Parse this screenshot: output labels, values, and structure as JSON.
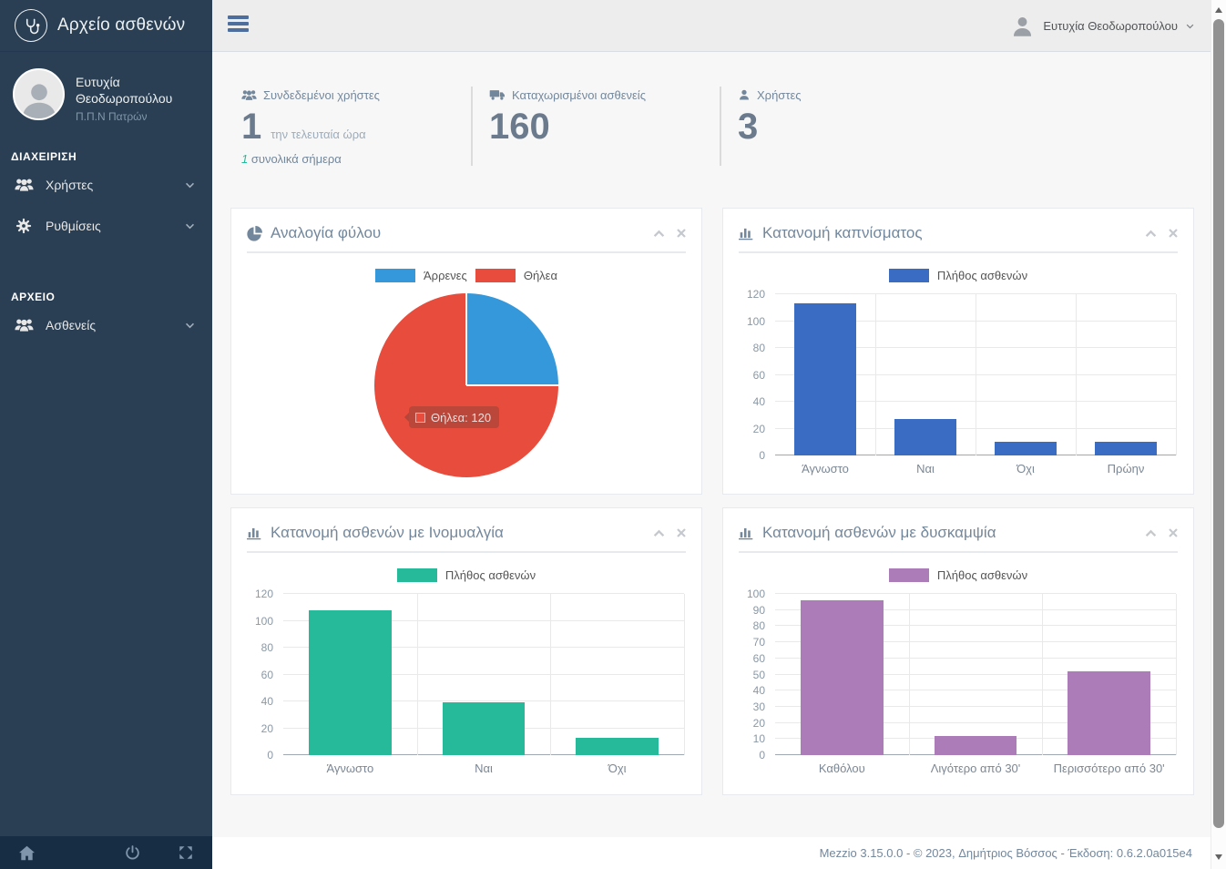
{
  "sidebar": {
    "brand": "Αρχείο ασθενών",
    "brand_icon": "stethoscope-icon",
    "user": {
      "name": "Ευτυχία Θεοδωροπούλου",
      "org": "Π.Π.Ν Πατρών"
    },
    "sections": [
      {
        "label": "ΔΙΑΧΕΙΡΙΣΗ",
        "items": [
          {
            "label": "Χρήστες",
            "icon": "users-icon"
          },
          {
            "label": "Ρυθμίσεις",
            "icon": "gear-icon"
          }
        ]
      },
      {
        "label": "ΑΡΧΕΙΟ",
        "items": [
          {
            "label": "Ασθενείς",
            "icon": "users-icon"
          }
        ]
      }
    ],
    "footer_icons": [
      "home-icon",
      "power-icon",
      "fullscreen-icon"
    ]
  },
  "topbar": {
    "menu_icon": "hamburger-icon",
    "user_icon": "person-icon",
    "user_name": "Ευτυχία Θεοδωροπούλου"
  },
  "stats": {
    "connected": {
      "icon": "users-icon",
      "label": "Συνδεδεμένοι χρήστες",
      "count": "1",
      "suffix": "την τελευταία ώρα",
      "sub_count": "1",
      "sub_label": "συνολικά σήμερα"
    },
    "patients": {
      "icon": "ambulance-icon",
      "label": "Καταχωρισμένοι ασθενείς",
      "count": "160"
    },
    "users": {
      "icon": "person-icon",
      "label": "Χρήστες",
      "count": "3"
    }
  },
  "colors": {
    "sidebar_bg": "#2A3F54",
    "topbar_bg": "#EDEDED",
    "accent_green": "#26B99A",
    "pie_blue": "#3498DB",
    "pie_red": "#E74C3C",
    "bar_blue": "#3A6CC4",
    "bar_green": "#26B99A",
    "bar_purple": "#AB7CB8"
  },
  "chart_data": [
    {
      "id": "gender",
      "type": "pie",
      "title": "Αναλογία φύλου",
      "legend_position": "top",
      "slices": [
        {
          "label": "Άρρενες",
          "value": 40,
          "color": "#3498DB"
        },
        {
          "label": "Θήλεα",
          "value": 120,
          "color": "#E74C3C"
        }
      ],
      "tooltip": {
        "label": "Θήλεα",
        "value": 120,
        "color": "#E74C3C"
      }
    },
    {
      "id": "smoking",
      "type": "bar",
      "title": "Κατανομή καπνίσματος",
      "legend": "Πλήθος ασθενών",
      "legend_position": "top",
      "color": "#3A6CC4",
      "categories": [
        "Άγνωστο",
        "Ναι",
        "Όχι",
        "Πρώην"
      ],
      "values": [
        113,
        27,
        10,
        10
      ],
      "ylim": [
        0,
        120
      ],
      "ytick_step": 20,
      "grid": true
    },
    {
      "id": "fibromyalgia",
      "type": "bar",
      "title": "Κατανομή ασθενών με Ινομυαλγία",
      "legend": "Πλήθος ασθενών",
      "legend_position": "top",
      "color": "#26B99A",
      "categories": [
        "Άγνωστο",
        "Ναι",
        "Όχι"
      ],
      "values": [
        108,
        39,
        13
      ],
      "ylim": [
        0,
        120
      ],
      "ytick_step": 20,
      "grid": true
    },
    {
      "id": "stiffness",
      "type": "bar",
      "title": "Κατανομή ασθενών με δυσκαμψία",
      "legend": "Πλήθος ασθενών",
      "legend_position": "top",
      "color": "#AB7CB8",
      "categories": [
        "Καθόλου",
        "Λιγότερο από 30'",
        "Περισσότερο από 30'"
      ],
      "values": [
        96,
        12,
        52
      ],
      "ylim": [
        0,
        100
      ],
      "ytick_step": 10,
      "grid": true
    }
  ],
  "footer": {
    "text": "Mezzio 3.15.0.0 - © 2023, Δημήτριος Βόσσος - Έκδοση: 0.6.2.0a015e4"
  }
}
